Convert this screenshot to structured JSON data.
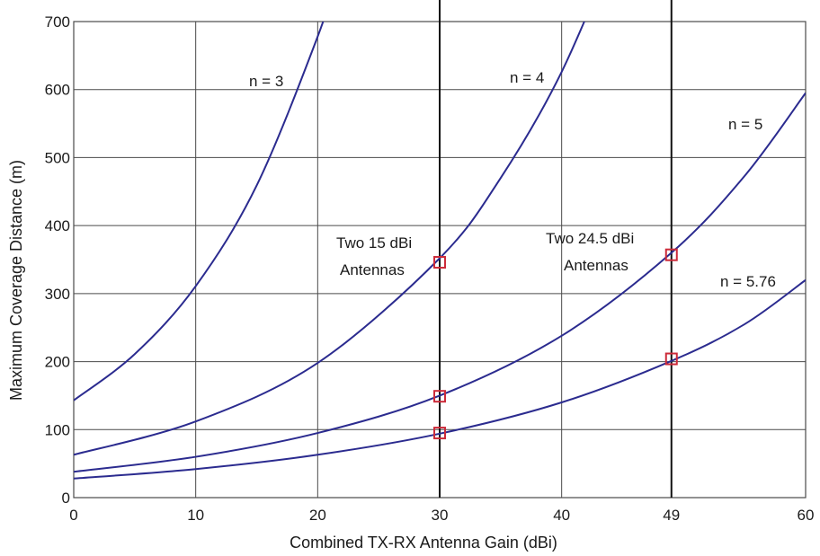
{
  "chart_data": {
    "type": "line",
    "title": "",
    "xlabel": "Combined TX-RX Antenna Gain (dBi)",
    "ylabel": "Maximum Coverage Distance (m)",
    "xlim": [
      0,
      60
    ],
    "ylim": [
      0,
      700
    ],
    "x_ticks": [
      0,
      10,
      20,
      30,
      40,
      49,
      60
    ],
    "y_ticks": [
      0,
      100,
      200,
      300,
      400,
      500,
      600,
      700
    ],
    "grid": true,
    "colors": {
      "curve": "#2b2b8f",
      "marker": "#cc2b3a",
      "grid": "#4a4a4a",
      "vline": "#111111"
    },
    "vertical_lines": [
      30,
      49
    ],
    "series": [
      {
        "name": "n = 3",
        "x": [
          0,
          5,
          10,
          15,
          20,
          22
        ],
        "y": [
          143,
          211,
          311,
          459,
          678,
          790
        ]
      },
      {
        "name": "n = 4",
        "x": [
          0,
          10,
          20,
          30,
          35,
          40,
          45
        ],
        "y": [
          63,
          112,
          198,
          352,
          470,
          626,
          835
        ]
      },
      {
        "name": "n = 5",
        "x": [
          0,
          10,
          20,
          30,
          40,
          49,
          55,
          60
        ],
        "y": [
          38,
          60,
          95,
          150,
          238,
          360,
          473,
          595
        ]
      },
      {
        "name": "n = 5.76",
        "x": [
          0,
          10,
          20,
          30,
          40,
          49,
          55,
          60
        ],
        "y": [
          28,
          42,
          63,
          94,
          140,
          201,
          255,
          320
        ]
      }
    ],
    "markers": [
      {
        "x": 30,
        "y": 346
      },
      {
        "x": 30,
        "y": 149
      },
      {
        "x": 30,
        "y": 95
      },
      {
        "x": 49,
        "y": 357
      },
      {
        "x": 49,
        "y": 204
      }
    ],
    "annotations": [
      {
        "id": "n3",
        "text": "n = 3"
      },
      {
        "id": "n4",
        "text": "n = 4"
      },
      {
        "id": "n5",
        "text": "n = 5"
      },
      {
        "id": "n576",
        "text": "n = 5.76"
      },
      {
        "id": "a15_1",
        "text": "Two 15 dBi"
      },
      {
        "id": "a15_2",
        "text": "Antennas"
      },
      {
        "id": "a245_1",
        "text": "Two 24.5 dBi"
      },
      {
        "id": "a245_2",
        "text": "Antennas"
      }
    ]
  }
}
